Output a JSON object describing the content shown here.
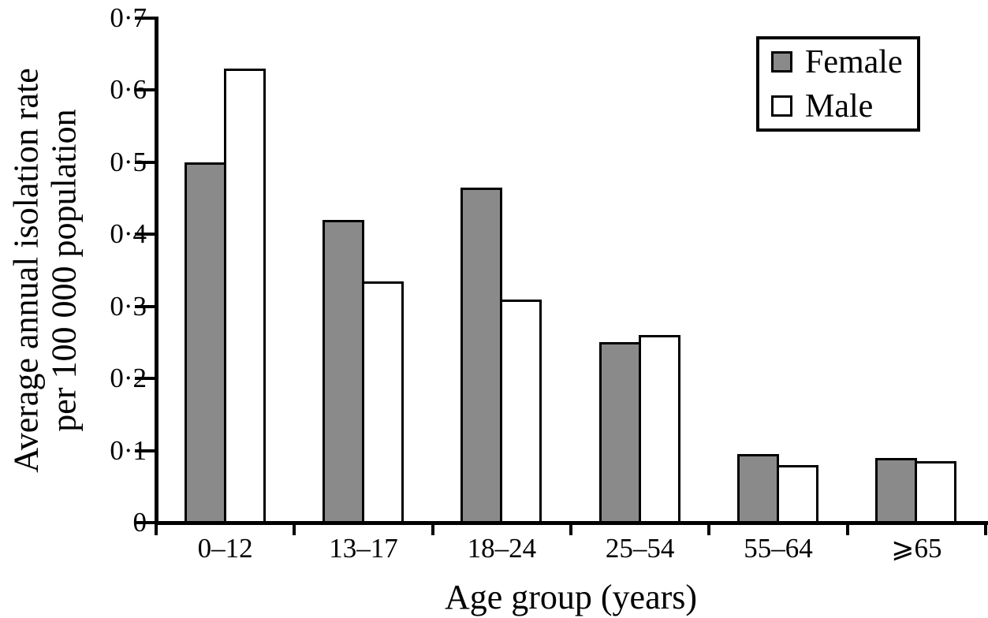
{
  "figure": {
    "y_axis_title_line1": "Average annual isolation rate",
    "y_axis_title_line2": "per 100 000 population",
    "x_axis_title": "Age group (years)"
  },
  "chart_data": {
    "type": "bar",
    "categories": [
      "0–12",
      "13–17",
      "18–24",
      "25–54",
      "55–64",
      "⩾65"
    ],
    "series": [
      {
        "name": "Female",
        "color": "#8a8a8a",
        "values": [
          0.5,
          0.42,
          0.465,
          0.25,
          0.095,
          0.09
        ]
      },
      {
        "name": "Male",
        "color": "#ffffff",
        "values": [
          0.63,
          0.335,
          0.31,
          0.26,
          0.08,
          0.085
        ]
      }
    ],
    "title": "",
    "xlabel": "Age group (years)",
    "ylabel": "Average annual isolation rate per 100 000 population",
    "ylim": [
      0,
      0.7
    ],
    "yticks": [
      0,
      0.1,
      0.2,
      0.3,
      0.4,
      0.5,
      0.6,
      0.7
    ],
    "ytick_labels": [
      "0",
      "0·1",
      "0·2",
      "0·3",
      "0·4",
      "0·5",
      "0·6",
      "0·7"
    ],
    "decimal_separator": "middle-dot",
    "grid": false,
    "legend_position": "top-right",
    "bar_outline_color": "#000000",
    "axis_color": "#000000"
  }
}
